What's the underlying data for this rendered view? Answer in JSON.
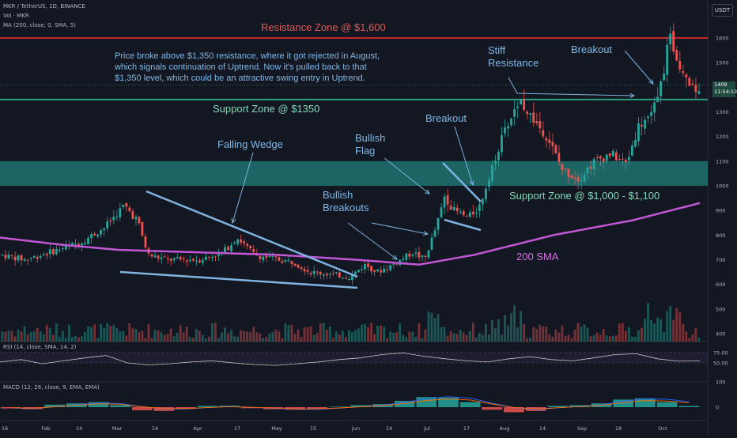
{
  "header": {
    "symbol_line": "MKR / TetherUS, 1D, BINANCE",
    "vol_line": "Vol · MKR",
    "ma_line": "MA (200, close, 0, SMA, 5)",
    "currency_button": "USDT"
  },
  "colors": {
    "background": "#131722",
    "up": "#26a69a",
    "down": "#ef5350",
    "resistance": "#c62828",
    "support": "#2e9e7a",
    "annotation_line": "#7fb3e0",
    "sma": "#c257d6",
    "label_blue": "#7fb8e6",
    "label_red": "#e05a5a",
    "label_green": "#7fd9b5",
    "label_purple": "#d36fe0"
  },
  "annotations": {
    "resistance_zone": "Resistance Zone @ $1,600",
    "support_1350": "Support Zone @ $1350",
    "support_1000": "Support Zone @ $1,000 - $1,100",
    "falling_wedge": "Falling Wedge",
    "bullish_breakouts": [
      "Bullish",
      "Breakouts"
    ],
    "bullish_flag": [
      "Bullish",
      "Flag"
    ],
    "breakout_1": "Breakout",
    "stiff_resistance": [
      "Stiff",
      "Resistance"
    ],
    "breakout_2": "Breakout",
    "sma_label": "200 SMA",
    "commentary": [
      "Price broke above $1,350 resistance, where it got rejected in August,",
      "which signals continuation of Uptrend. Now it's pulled back to that",
      "$1,350 level, which could be an attractive swing entry in Uptrend."
    ]
  },
  "price_tag": {
    "price": "1409",
    "countdown": "11:54:13"
  },
  "rsi_label": "RSI (14, close, SMA, 14, 2)",
  "macd_label": "MACD (12, 26, close, 9, EMA, EMA)",
  "chart_data": [
    {
      "type": "candlestick",
      "title": "MKR / TetherUS, 1D, BINANCE",
      "ylim": [
        380,
        1640
      ],
      "y_ticks": [
        1600,
        1500,
        1400,
        1300,
        1200,
        1100,
        1000,
        900,
        800,
        700,
        600,
        500,
        400
      ],
      "x_ticks": [
        "16",
        "Feb",
        "14",
        "Mar",
        "14",
        "Apr",
        "17",
        "May",
        "15",
        "Jun",
        "14",
        "Jul",
        "17",
        "Aug",
        "14",
        "Sep",
        "18",
        "Oct"
      ],
      "current_price": 1409,
      "horizontal_levels": [
        {
          "name": "Resistance Zone @ $1,600",
          "value": 1600
        },
        {
          "name": "Support Zone @ $1350",
          "value": 1350
        }
      ],
      "zones": [
        {
          "name": "Support Zone @ $1,000 - $1,100",
          "from": 1000,
          "to": 1100
        }
      ],
      "close_path": [
        {
          "x": 0,
          "y": 720
        },
        {
          "x": 30,
          "y": 700
        },
        {
          "x": 60,
          "y": 730
        },
        {
          "x": 100,
          "y": 770
        },
        {
          "x": 130,
          "y": 830
        },
        {
          "x": 155,
          "y": 920
        },
        {
          "x": 172,
          "y": 860
        },
        {
          "x": 185,
          "y": 720
        },
        {
          "x": 210,
          "y": 700
        },
        {
          "x": 250,
          "y": 700
        },
        {
          "x": 280,
          "y": 730
        },
        {
          "x": 298,
          "y": 790
        },
        {
          "x": 320,
          "y": 720
        },
        {
          "x": 350,
          "y": 700
        },
        {
          "x": 370,
          "y": 690
        },
        {
          "x": 390,
          "y": 650
        },
        {
          "x": 420,
          "y": 640
        },
        {
          "x": 440,
          "y": 630
        },
        {
          "x": 460,
          "y": 680
        },
        {
          "x": 475,
          "y": 650
        },
        {
          "x": 495,
          "y": 680
        },
        {
          "x": 520,
          "y": 730
        },
        {
          "x": 535,
          "y": 700
        },
        {
          "x": 548,
          "y": 820
        },
        {
          "x": 560,
          "y": 960
        },
        {
          "x": 572,
          "y": 900
        },
        {
          "x": 590,
          "y": 870
        },
        {
          "x": 605,
          "y": 920
        },
        {
          "x": 620,
          "y": 1080
        },
        {
          "x": 640,
          "y": 1250
        },
        {
          "x": 655,
          "y": 1350
        },
        {
          "x": 670,
          "y": 1280
        },
        {
          "x": 690,
          "y": 1200
        },
        {
          "x": 710,
          "y": 1060
        },
        {
          "x": 730,
          "y": 1030
        },
        {
          "x": 750,
          "y": 1100
        },
        {
          "x": 770,
          "y": 1130
        },
        {
          "x": 790,
          "y": 1090
        },
        {
          "x": 805,
          "y": 1240
        },
        {
          "x": 820,
          "y": 1290
        },
        {
          "x": 830,
          "y": 1350
        },
        {
          "x": 845,
          "y": 1600
        },
        {
          "x": 860,
          "y": 1480
        },
        {
          "x": 880,
          "y": 1380
        },
        {
          "x": 885,
          "y": 1409
        }
      ],
      "sma_200": [
        {
          "x": 0,
          "y": 790
        },
        {
          "x": 80,
          "y": 760
        },
        {
          "x": 150,
          "y": 740
        },
        {
          "x": 250,
          "y": 730
        },
        {
          "x": 350,
          "y": 720
        },
        {
          "x": 450,
          "y": 700
        },
        {
          "x": 530,
          "y": 680
        },
        {
          "x": 600,
          "y": 720
        },
        {
          "x": 700,
          "y": 800
        },
        {
          "x": 800,
          "y": 860
        },
        {
          "x": 885,
          "y": 930
        }
      ]
    },
    {
      "type": "line",
      "title": "RSI (14, close, SMA, 14, 2)",
      "y_ticks": [
        75,
        50
      ],
      "y_tick_labels": [
        "75.00",
        "50.00"
      ],
      "values": [
        52,
        58,
        48,
        55,
        62,
        68,
        50,
        45,
        48,
        52,
        55,
        50,
        46,
        44,
        48,
        52,
        58,
        62,
        70,
        74,
        66,
        60,
        55,
        52,
        60,
        65,
        58,
        55,
        62,
        70,
        72,
        60,
        54,
        55
      ]
    },
    {
      "type": "bar",
      "title": "MACD (12, 26, close, 9, EMA, EMA)",
      "y_ticks": [
        100,
        0
      ],
      "values": [
        -5,
        -8,
        10,
        15,
        20,
        8,
        -12,
        -15,
        -5,
        5,
        6,
        -4,
        -8,
        -10,
        -6,
        2,
        8,
        12,
        25,
        40,
        38,
        20,
        -10,
        -20,
        -15,
        5,
        8,
        15,
        30,
        35,
        20,
        5
      ]
    }
  ]
}
